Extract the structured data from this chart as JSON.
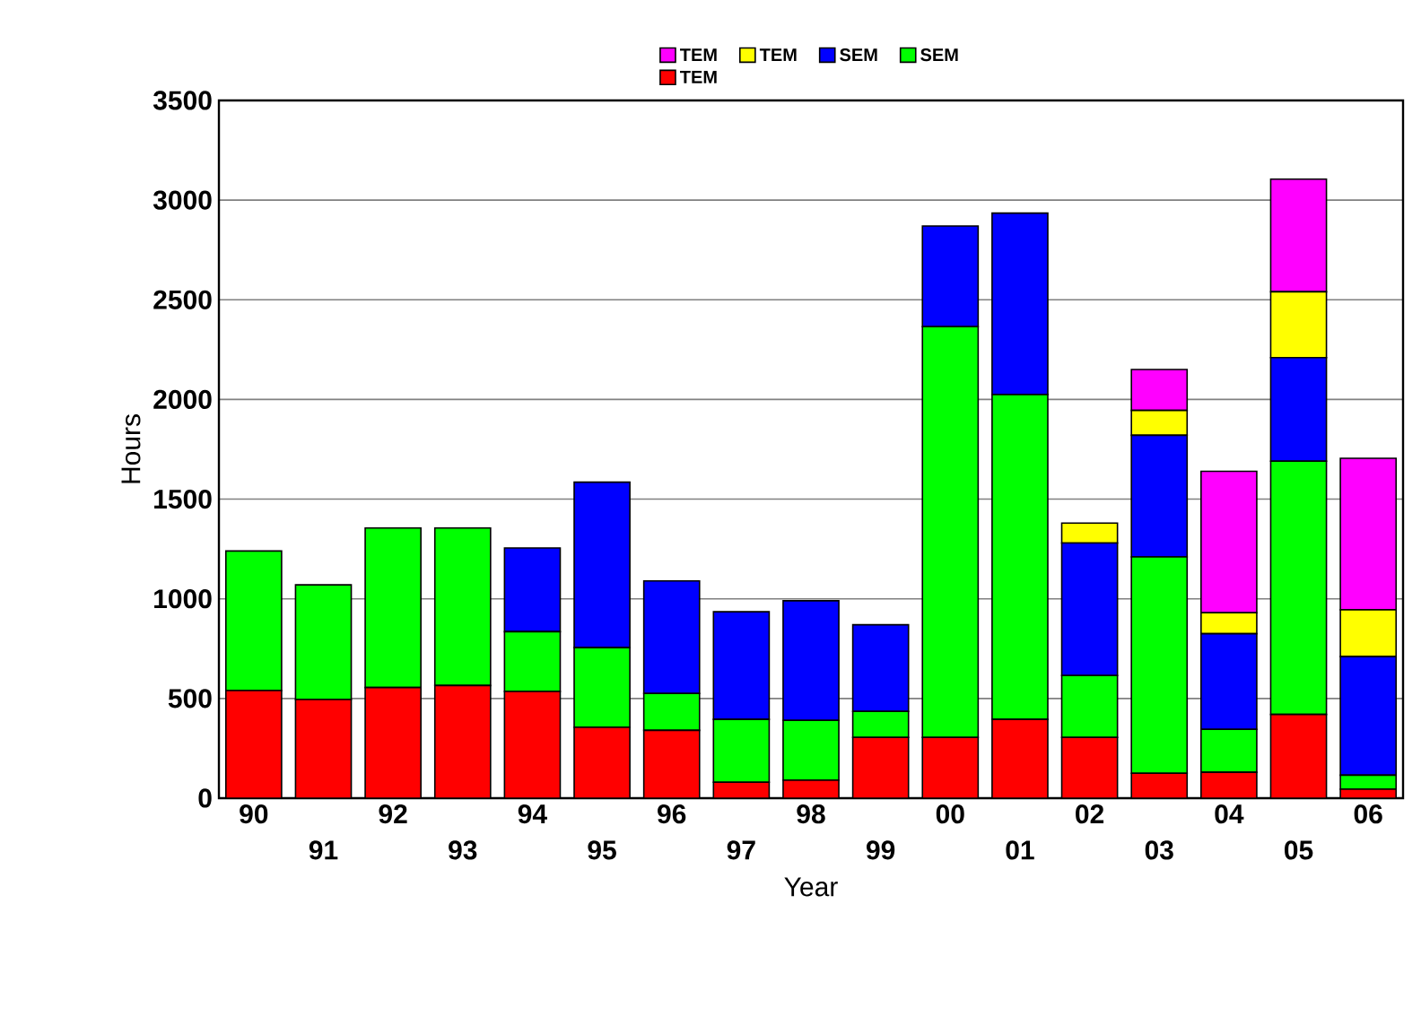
{
  "chart_data": {
    "type": "bar",
    "stacked": true,
    "xlabel": "Year",
    "ylabel": "Hours",
    "categories": [
      "90",
      "91",
      "92",
      "93",
      "94",
      "95",
      "96",
      "97",
      "98",
      "99",
      "00",
      "01",
      "02",
      "03",
      "04",
      "05",
      "06"
    ],
    "series": [
      {
        "name": "TEM",
        "color": "#ff0000",
        "values": [
          540,
          495,
          555,
          565,
          535,
          355,
          340,
          80,
          90,
          305,
          305,
          395,
          305,
          125,
          130,
          420,
          45
        ]
      },
      {
        "name": "SEM",
        "color": "#00ff00",
        "values": [
          700,
          575,
          800,
          790,
          300,
          400,
          185,
          315,
          300,
          130,
          2060,
          1630,
          310,
          1085,
          215,
          1270,
          70
        ]
      },
      {
        "name": "SEM",
        "color": "#0000ff",
        "values": [
          null,
          null,
          null,
          null,
          420,
          830,
          565,
          540,
          600,
          435,
          505,
          910,
          665,
          610,
          480,
          520,
          595
        ]
      },
      {
        "name": "TEM",
        "color": "#ffff00",
        "values": [
          null,
          null,
          null,
          null,
          null,
          null,
          null,
          null,
          null,
          null,
          null,
          null,
          100,
          125,
          105,
          330,
          235
        ]
      },
      {
        "name": "TEM",
        "color": "#ff00ff",
        "values": [
          null,
          null,
          null,
          null,
          null,
          null,
          null,
          null,
          null,
          null,
          null,
          null,
          null,
          205,
          710,
          565,
          760
        ]
      }
    ],
    "ylim": [
      0,
      3500
    ],
    "yticks": [
      0,
      500,
      1000,
      1500,
      2000,
      2500,
      3000,
      3500
    ],
    "grid": "y",
    "legend": "top"
  }
}
